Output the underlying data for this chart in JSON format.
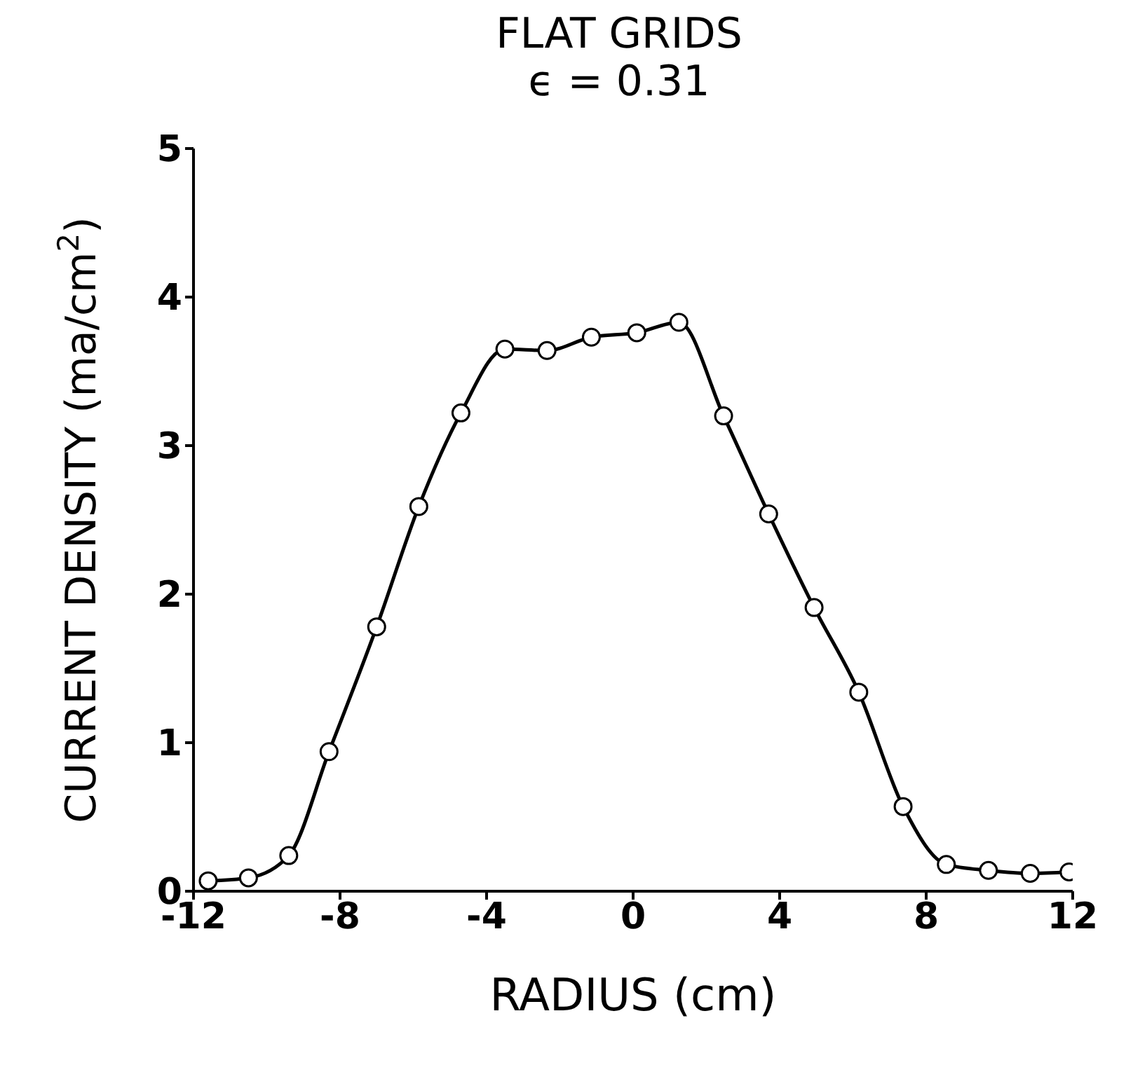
{
  "chart_data": {
    "type": "line",
    "title": "FLAT GRIDS",
    "subtitle": "ϵ = 0.31",
    "xlabel": "RADIUS (cm)",
    "ylabel": "CURRENT DENSITY (ma/cm$^{2}$)",
    "x": [
      -11.6,
      -10.5,
      -9.4,
      -8.3,
      -7.0,
      -5.85,
      -4.7,
      -3.5,
      -2.35,
      -1.14,
      0.1,
      1.25,
      2.47,
      3.7,
      4.94,
      6.16,
      7.37,
      8.55,
      9.7,
      10.84,
      11.9
    ],
    "series": [
      {
        "color": "#000000",
        "values": [
          0.07,
          0.09,
          0.24,
          0.94,
          1.78,
          2.59,
          3.22,
          3.65,
          3.64,
          3.73,
          3.76,
          3.83,
          3.2,
          2.54,
          1.91,
          1.34,
          0.57,
          0.18,
          0.14,
          0.12,
          0.13
        ]
      }
    ],
    "xlim": [
      -12,
      12
    ],
    "xticks": [
      -12,
      -8,
      -4,
      0,
      4,
      8,
      12
    ],
    "ylim": [
      0,
      5
    ],
    "yticks": [
      0,
      1,
      2,
      3,
      4,
      5
    ],
    "marker": "circle",
    "line_style": "solid",
    "grid": false,
    "legend": false
  }
}
